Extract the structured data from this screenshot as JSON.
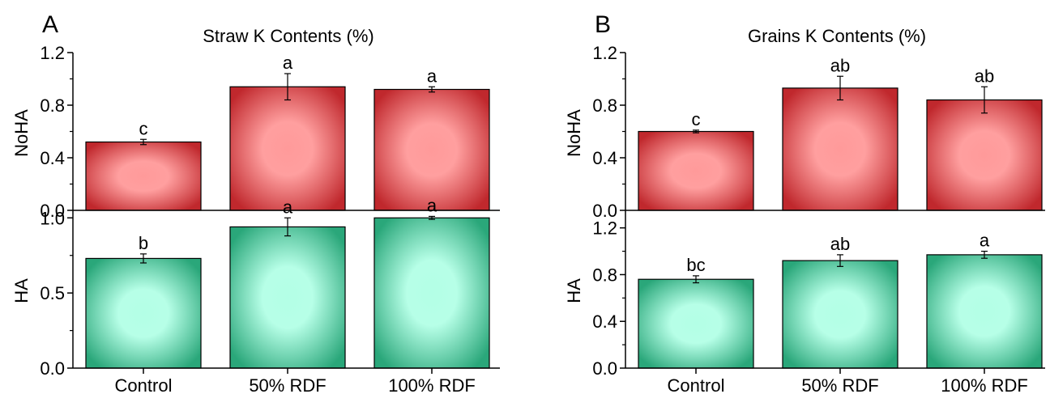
{
  "panels": [
    {
      "letter": "A",
      "title": "Straw K Contents (%)"
    },
    {
      "letter": "B",
      "title": "Grains K Contents (%)"
    }
  ],
  "chart_data": [
    {
      "type": "bar",
      "panel": "A",
      "title": "Straw K Contents (%)",
      "ylabel": "NoHA",
      "categories": [
        "Control",
        "50% RDF",
        "100% RDF"
      ],
      "values": [
        0.52,
        0.94,
        0.92
      ],
      "errors": [
        0.02,
        0.1,
        0.02
      ],
      "labels": [
        "c",
        "a",
        "a"
      ],
      "ylim": [
        0,
        1.2
      ],
      "ticks": [
        "0.0",
        "0.4",
        "0.8",
        "1.2"
      ],
      "tick_values": [
        0,
        0.4,
        0.8,
        1.2
      ],
      "color": "#c0282d",
      "highlight": "#ff9a9a"
    },
    {
      "type": "bar",
      "panel": "A",
      "ylabel": "HA",
      "categories": [
        "Control",
        "50% RDF",
        "100% RDF"
      ],
      "values": [
        0.73,
        0.94,
        1.0
      ],
      "errors": [
        0.03,
        0.06,
        0.01
      ],
      "labels": [
        "b",
        "a",
        "a"
      ],
      "ylim": [
        0,
        1.05
      ],
      "ticks": [
        "0.0",
        "0.5",
        "1.0"
      ],
      "tick_values": [
        0,
        0.5,
        1.0
      ],
      "color": "#2aa77a",
      "highlight": "#b3ffe6"
    },
    {
      "type": "bar",
      "panel": "B",
      "title": "Grains K Contents (%)",
      "ylabel": "NoHA",
      "categories": [
        "Control",
        "50% RDF",
        "100% RDF"
      ],
      "values": [
        0.6,
        0.93,
        0.84
      ],
      "errors": [
        0.01,
        0.09,
        0.1
      ],
      "labels": [
        "c",
        "ab",
        "ab"
      ],
      "ylim": [
        0,
        1.2
      ],
      "ticks": [
        "0.0",
        "0.4",
        "0.8",
        "1.2"
      ],
      "tick_values": [
        0,
        0.4,
        0.8,
        1.2
      ],
      "color": "#c0282d",
      "highlight": "#ff9a9a"
    },
    {
      "type": "bar",
      "panel": "B",
      "ylabel": "HA",
      "categories": [
        "Control",
        "50% RDF",
        "100% RDF"
      ],
      "values": [
        0.76,
        0.92,
        0.97
      ],
      "errors": [
        0.03,
        0.05,
        0.03
      ],
      "labels": [
        "bc",
        "ab",
        "a"
      ],
      "ylim": [
        0,
        1.35
      ],
      "ticks": [
        "0.0",
        "0.4",
        "0.8",
        "1.2"
      ],
      "tick_values": [
        0,
        0.4,
        0.8,
        1.2
      ],
      "color": "#2aa77a",
      "highlight": "#b3ffe6"
    }
  ]
}
